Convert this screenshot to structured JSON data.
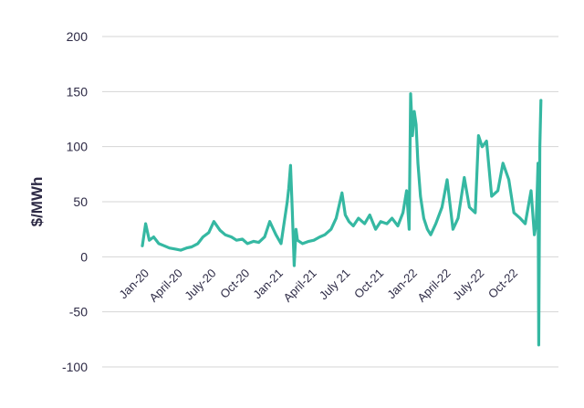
{
  "chart_data": {
    "type": "line",
    "title": "",
    "xlabel": "",
    "ylabel": "$/MWh",
    "ylim": [
      -100,
      200
    ],
    "yticks": [
      "200",
      "150",
      "100",
      "50",
      "0",
      "-50",
      "-100"
    ],
    "xticks": [
      "Jan-20",
      "April-20",
      "July-20",
      "Oct-20",
      "Jan-21",
      "April-21",
      "July 21",
      "Oct-21",
      "Jan-22",
      "April-22",
      "July-22",
      "Oct-22"
    ],
    "grid": true,
    "legend": "none",
    "series": [
      {
        "color": "#35b8a2",
        "x": [
          "2020-01-01",
          "2020-01-10",
          "2020-01-20",
          "2020-02-01",
          "2020-02-15",
          "2020-03-01",
          "2020-03-15",
          "2020-04-01",
          "2020-04-15",
          "2020-05-01",
          "2020-05-15",
          "2020-06-01",
          "2020-06-15",
          "2020-07-01",
          "2020-07-15",
          "2020-08-01",
          "2020-08-15",
          "2020-09-01",
          "2020-09-15",
          "2020-10-01",
          "2020-10-15",
          "2020-11-01",
          "2020-11-15",
          "2020-12-01",
          "2020-12-15",
          "2021-01-01",
          "2021-01-15",
          "2021-02-01",
          "2021-02-05",
          "2021-02-10",
          "2021-02-15",
          "2021-02-20",
          "2021-02-25",
          "2021-03-01",
          "2021-03-15",
          "2021-04-01",
          "2021-04-15",
          "2021-05-01",
          "2021-05-15",
          "2021-06-01",
          "2021-06-15",
          "2021-07-01",
          "2021-07-10",
          "2021-07-20",
          "2021-08-01",
          "2021-08-15",
          "2021-09-01",
          "2021-09-15",
          "2021-10-01",
          "2021-10-15",
          "2021-11-01",
          "2021-11-15",
          "2021-12-01",
          "2021-12-15",
          "2021-12-25",
          "2022-01-01",
          "2022-01-05",
          "2022-01-10",
          "2022-01-15",
          "2022-01-20",
          "2022-01-25",
          "2022-02-01",
          "2022-02-10",
          "2022-02-20",
          "2022-03-01",
          "2022-03-15",
          "2022-04-01",
          "2022-04-15",
          "2022-05-01",
          "2022-05-15",
          "2022-06-01",
          "2022-06-15",
          "2022-07-01",
          "2022-07-10",
          "2022-07-20",
          "2022-08-01",
          "2022-08-15",
          "2022-09-01",
          "2022-09-15",
          "2022-10-01",
          "2022-10-15",
          "2022-11-01",
          "2022-11-15",
          "2022-12-01",
          "2022-12-10",
          "2022-12-15",
          "2022-12-18",
          "2022-12-20",
          "2022-12-22",
          "2022-12-25",
          "2022-12-28"
        ],
        "y": [
          10,
          30,
          15,
          18,
          12,
          10,
          8,
          7,
          6,
          8,
          9,
          12,
          18,
          22,
          32,
          24,
          20,
          18,
          15,
          16,
          12,
          14,
          13,
          18,
          32,
          20,
          12,
          50,
          62,
          83,
          40,
          -8,
          25,
          15,
          12,
          14,
          15,
          18,
          20,
          25,
          35,
          58,
          38,
          32,
          28,
          35,
          30,
          38,
          25,
          32,
          30,
          35,
          28,
          40,
          60,
          25,
          148,
          110,
          132,
          120,
          85,
          55,
          35,
          25,
          20,
          30,
          45,
          70,
          25,
          35,
          72,
          45,
          40,
          110,
          100,
          105,
          55,
          60,
          85,
          70,
          40,
          35,
          30,
          60,
          20,
          30,
          62,
          85,
          -80,
          100,
          142
        ]
      }
    ]
  }
}
